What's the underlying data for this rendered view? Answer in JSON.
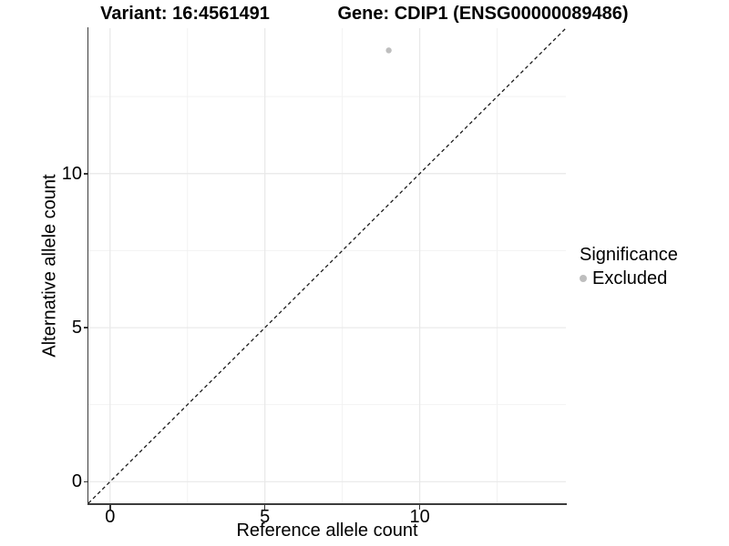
{
  "header": {
    "variant_title": "Variant: 16:4561491",
    "gene_title": "Gene: CDIP1 (ENSG00000089486)"
  },
  "chart_data": {
    "type": "scatter",
    "title_left": "Variant: 16:4561491",
    "title_right": "Gene: CDIP1 (ENSG00000089486)",
    "xlabel": "Reference allele count",
    "ylabel": "Alternative allele count",
    "xlim": [
      -0.7,
      14.72
    ],
    "ylim": [
      -0.7,
      14.72
    ],
    "x_ticks": [
      0,
      5,
      10
    ],
    "y_ticks": [
      0,
      5,
      10
    ],
    "x_minor_gridlines": [
      2.5,
      7.5,
      12.5
    ],
    "y_minor_gridlines": [
      2.5,
      7.5,
      12.5
    ],
    "grid": true,
    "points": [
      {
        "x": 9,
        "y": 14,
        "significance": "Excluded"
      }
    ],
    "identity_line": {
      "slope": 1,
      "intercept": 0,
      "style": "dashed"
    },
    "legend": {
      "title": "Significance",
      "position": "right",
      "items": [
        {
          "label": "Excluded",
          "color": "#bebebe"
        }
      ]
    },
    "colors": {
      "point": "#bebebe",
      "grid_major": "#e8e8e8",
      "grid_minor": "#f2f2f2",
      "axis_line": "#3c3c3c",
      "tick_mark": "#333333",
      "identity_line": "#1a1a1a",
      "text": "#000000",
      "background": "#ffffff"
    }
  }
}
